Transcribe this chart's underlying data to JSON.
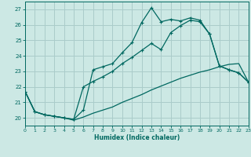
{
  "xlabel": "Humidex (Indice chaleur)",
  "bg_color": "#cce8e4",
  "grid_color": "#aaccca",
  "line_color": "#006860",
  "xlim": [
    0,
    23
  ],
  "ylim": [
    19.5,
    27.5
  ],
  "yticks": [
    20,
    21,
    22,
    23,
    24,
    25,
    26,
    27
  ],
  "xticks": [
    0,
    1,
    2,
    3,
    4,
    5,
    6,
    7,
    8,
    9,
    10,
    11,
    12,
    13,
    14,
    15,
    16,
    17,
    18,
    19,
    20,
    21,
    22,
    23
  ],
  "line1_x": [
    0,
    1,
    2,
    3,
    4,
    5,
    6,
    7,
    8,
    9,
    10,
    11,
    12,
    13,
    14,
    15,
    16,
    17,
    18,
    19,
    20,
    21,
    22,
    23
  ],
  "line1_y": [
    21.7,
    20.4,
    20.2,
    20.1,
    20.0,
    19.85,
    20.05,
    20.3,
    20.5,
    20.7,
    21.0,
    21.25,
    21.5,
    21.8,
    22.05,
    22.3,
    22.55,
    22.75,
    22.95,
    23.1,
    23.3,
    23.45,
    23.5,
    22.3
  ],
  "line2_x": [
    0,
    1,
    2,
    3,
    4,
    5,
    6,
    7,
    8,
    9,
    10,
    11,
    12,
    13,
    14,
    15,
    16,
    17,
    18,
    19,
    20,
    21,
    22,
    23
  ],
  "line2_y": [
    21.7,
    20.4,
    20.2,
    20.1,
    20.0,
    19.9,
    20.5,
    23.1,
    23.3,
    23.5,
    24.2,
    24.85,
    26.15,
    27.1,
    26.2,
    26.35,
    26.25,
    26.45,
    26.3,
    25.4,
    23.35,
    23.1,
    22.9,
    22.3
  ],
  "line3_x": [
    0,
    1,
    2,
    3,
    4,
    5,
    6,
    7,
    8,
    9,
    10,
    11,
    12,
    13,
    14,
    15,
    16,
    17,
    18,
    19,
    20,
    21,
    22,
    23
  ],
  "line3_y": [
    21.7,
    20.4,
    20.2,
    20.1,
    20.0,
    19.9,
    22.0,
    22.35,
    22.65,
    23.0,
    23.5,
    23.9,
    24.35,
    24.8,
    24.4,
    25.5,
    25.95,
    26.3,
    26.2,
    25.4,
    23.35,
    23.1,
    22.9,
    22.3
  ]
}
